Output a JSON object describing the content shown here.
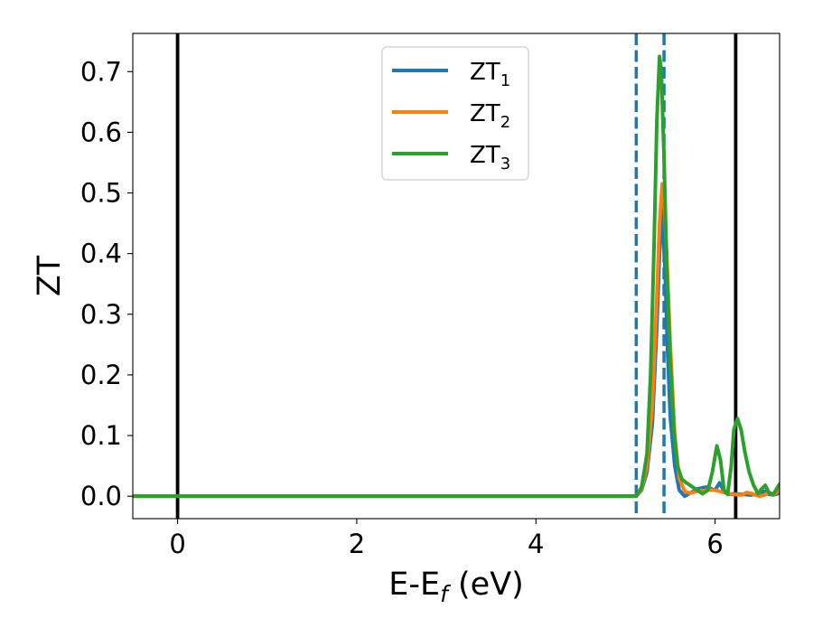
{
  "chart_data": {
    "type": "line",
    "xlabel": "E-E",
    "xlabel_subscript": "f",
    "xlabel_unit": " (eV)",
    "ylabel": "ZT",
    "xlim": [
      -0.5,
      6.72
    ],
    "ylim": [
      -0.037,
      0.763
    ],
    "xticks": [
      0,
      2,
      4,
      6
    ],
    "xtick_labels": [
      "0",
      "2",
      "4",
      "6"
    ],
    "yticks": [
      0.0,
      0.1,
      0.2,
      0.3,
      0.4,
      0.5,
      0.6,
      0.7
    ],
    "ytick_labels": [
      "0.0",
      "0.1",
      "0.2",
      "0.3",
      "0.4",
      "0.5",
      "0.6",
      "0.7"
    ],
    "grid": false,
    "legend_position": "top-center",
    "vertical_lines": [
      {
        "x": 0.0,
        "style": "solid",
        "color": "#000000"
      },
      {
        "x": 6.23,
        "style": "solid",
        "color": "#000000"
      },
      {
        "x": 5.12,
        "style": "dashed",
        "color": "#1f77b4"
      },
      {
        "x": 5.43,
        "style": "dashed",
        "color": "#1f77b4"
      }
    ],
    "series": [
      {
        "name": "ZT",
        "subscript": "1",
        "color": "#1f77b4",
        "x": [
          -0.5,
          5.0,
          5.12,
          5.18,
          5.24,
          5.3,
          5.35,
          5.38,
          5.41,
          5.44,
          5.47,
          5.5,
          5.55,
          5.6,
          5.66,
          5.72,
          5.8,
          5.9,
          6.0,
          6.05,
          6.1,
          6.15,
          6.2,
          6.3,
          6.4,
          6.5,
          6.55,
          6.6,
          6.65,
          6.72
        ],
        "values": [
          0.0,
          0.0,
          0.0,
          0.01,
          0.04,
          0.12,
          0.28,
          0.4,
          0.47,
          0.38,
          0.24,
          0.13,
          0.05,
          0.01,
          0.0,
          0.005,
          0.012,
          0.015,
          0.01,
          0.022,
          0.008,
          0.003,
          0.004,
          0.003,
          0.002,
          0.004,
          0.008,
          0.003,
          0.002,
          0.005
        ]
      },
      {
        "name": "ZT",
        "subscript": "2",
        "color": "#ff7f0e",
        "x": [
          -0.5,
          5.0,
          5.12,
          5.18,
          5.24,
          5.3,
          5.35,
          5.38,
          5.41,
          5.43,
          5.46,
          5.5,
          5.55,
          5.6,
          5.66,
          5.72,
          5.8,
          5.9,
          6.0,
          6.1,
          6.2,
          6.3,
          6.35,
          6.4,
          6.45,
          6.5,
          6.55,
          6.6,
          6.65,
          6.72
        ],
        "values": [
          0.0,
          0.0,
          0.0,
          0.012,
          0.05,
          0.15,
          0.33,
          0.45,
          0.515,
          0.5,
          0.4,
          0.25,
          0.1,
          0.03,
          0.008,
          0.005,
          0.008,
          0.01,
          0.01,
          0.006,
          0.003,
          0.002,
          0.006,
          0.005,
          0.002,
          0.0,
          0.002,
          0.006,
          0.002,
          0.01
        ]
      },
      {
        "name": "ZT",
        "subscript": "3",
        "color": "#2ca02c",
        "x": [
          -0.5,
          5.0,
          5.12,
          5.18,
          5.24,
          5.28,
          5.32,
          5.35,
          5.38,
          5.4,
          5.43,
          5.46,
          5.5,
          5.54,
          5.58,
          5.63,
          5.68,
          5.74,
          5.8,
          5.86,
          5.92,
          5.97,
          6.02,
          6.06,
          6.1,
          6.14,
          6.18,
          6.21,
          6.25,
          6.29,
          6.33,
          6.38,
          6.43,
          6.48,
          6.52,
          6.56,
          6.6,
          6.65,
          6.72
        ],
        "values": [
          0.0,
          0.0,
          0.0,
          0.015,
          0.07,
          0.2,
          0.42,
          0.62,
          0.725,
          0.7,
          0.56,
          0.38,
          0.22,
          0.11,
          0.05,
          0.028,
          0.022,
          0.016,
          0.01,
          0.004,
          0.01,
          0.04,
          0.083,
          0.06,
          0.01,
          0.003,
          0.05,
          0.11,
          0.128,
          0.11,
          0.075,
          0.04,
          0.018,
          0.004,
          0.012,
          0.018,
          0.006,
          0.003,
          0.02
        ]
      }
    ]
  }
}
